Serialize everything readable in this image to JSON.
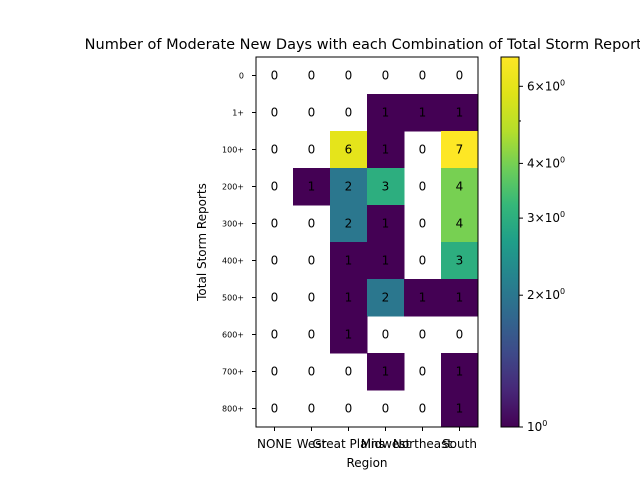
{
  "chart_data": {
    "type": "heatmap",
    "title": "Number of Moderate New Days with each Combination of Total Storm Reports",
    "xlabel": "Region",
    "ylabel": "Total Storm Reports",
    "x_categories": [
      "NONE",
      "West",
      "Great Plains",
      "Midwest",
      "Northeast",
      "South"
    ],
    "y_categories": [
      "0",
      "1+",
      "100+",
      "200+",
      "300+",
      "400+",
      "500+",
      "600+",
      "700+",
      "800+"
    ],
    "values": [
      [
        0,
        0,
        0,
        0,
        0,
        0
      ],
      [
        0,
        0,
        0,
        1,
        1,
        1
      ],
      [
        0,
        0,
        6,
        1,
        0,
        7
      ],
      [
        0,
        1,
        2,
        3,
        0,
        4
      ],
      [
        0,
        0,
        2,
        1,
        0,
        4
      ],
      [
        0,
        0,
        1,
        1,
        0,
        3
      ],
      [
        0,
        0,
        1,
        2,
        1,
        1
      ],
      [
        0,
        0,
        1,
        0,
        0,
        0
      ],
      [
        0,
        0,
        0,
        1,
        0,
        1
      ],
      [
        0,
        0,
        0,
        0,
        0,
        1
      ]
    ],
    "color_scale": "log",
    "colormap": "viridis",
    "zero_color": "#ffffff",
    "colorbar": {
      "range": [
        1,
        7
      ],
      "major_ticks": [
        {
          "value": 1,
          "label": "10^0"
        },
        {
          "value": 2,
          "label": "2×10^0"
        },
        {
          "value": 3,
          "label": "3×10^0"
        },
        {
          "value": 4,
          "label": "4×10^0"
        },
        {
          "value": 6,
          "label": "6×10^0"
        }
      ],
      "minor_ticks": [
        5
      ]
    },
    "grid": false,
    "legend": "none"
  }
}
